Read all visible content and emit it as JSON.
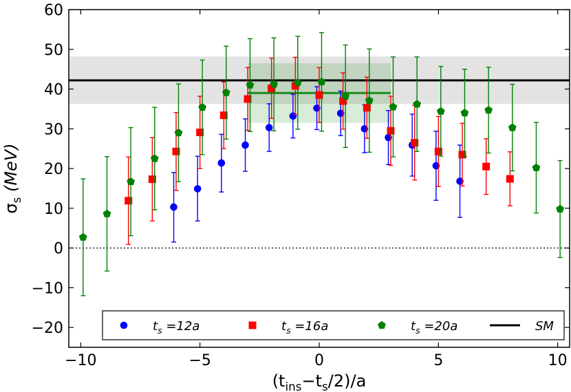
{
  "chart_data": {
    "type": "scatter",
    "title": "",
    "xlabel": "(t_ins−t_s/2)/a",
    "ylabel": "σ_s (MeV)",
    "xlim": [
      -10.5,
      10.5
    ],
    "ylim": [
      -25,
      60
    ],
    "x_ticks": [
      -10,
      -5,
      0,
      5,
      10
    ],
    "y_ticks": [
      -20,
      -10,
      0,
      10,
      20,
      30,
      40,
      50,
      60
    ],
    "x_tick_labels": [
      "−10",
      "−5",
      "0",
      "5",
      "10"
    ],
    "y_tick_labels": [
      "−20",
      "−10",
      "0",
      "10",
      "20",
      "30",
      "40",
      "50",
      "60"
    ],
    "zero_line": 0,
    "sm": {
      "value": 42.2,
      "band": [
        36.3,
        48.2
      ],
      "label": "SM",
      "color": "#000000"
    },
    "fit": {
      "x": [
        -3,
        3
      ],
      "value": 39.0,
      "band": [
        31.5,
        46.5
      ],
      "color": "#1a8c1a"
    },
    "series": [
      {
        "name": "t_s =12a",
        "legend_base": "t",
        "legend_sub": "s",
        "legend_rest": " =12a",
        "color": "#0000ff",
        "marker": "circle",
        "points": [
          {
            "x": -6,
            "y": 10.3,
            "lo": 1.5,
            "hi": 19.0
          },
          {
            "x": -5,
            "y": 14.9,
            "lo": 6.8,
            "hi": 23.1
          },
          {
            "x": -4,
            "y": 21.4,
            "lo": 14.1,
            "hi": 28.6
          },
          {
            "x": -3,
            "y": 25.9,
            "lo": 19.3,
            "hi": 32.5
          },
          {
            "x": -2,
            "y": 30.3,
            "lo": 24.3,
            "hi": 36.3
          },
          {
            "x": -1,
            "y": 33.2,
            "lo": 27.7,
            "hi": 38.7
          },
          {
            "x": 0,
            "y": 35.2,
            "lo": 29.8,
            "hi": 40.6
          },
          {
            "x": 1,
            "y": 33.9,
            "lo": 28.3,
            "hi": 39.5
          },
          {
            "x": 2,
            "y": 30.0,
            "lo": 24.0,
            "hi": 36.0
          },
          {
            "x": 3,
            "y": 27.8,
            "lo": 21.0,
            "hi": 34.6
          },
          {
            "x": 4,
            "y": 25.9,
            "lo": 18.1,
            "hi": 33.7
          },
          {
            "x": 5,
            "y": 20.7,
            "lo": 12.0,
            "hi": 29.4
          },
          {
            "x": 6,
            "y": 16.8,
            "lo": 7.7,
            "hi": 25.9
          }
        ]
      },
      {
        "name": "t_s =16a",
        "legend_base": "t",
        "legend_sub": "s",
        "legend_rest": " =16a",
        "color": "#ff0000",
        "marker": "square",
        "points": [
          {
            "x": -8,
            "y": 11.9,
            "lo": 0.9,
            "hi": 22.9
          },
          {
            "x": -7,
            "y": 17.3,
            "lo": 6.8,
            "hi": 27.8
          },
          {
            "x": -6,
            "y": 24.3,
            "lo": 14.5,
            "hi": 34.1
          },
          {
            "x": -5,
            "y": 29.1,
            "lo": 20.0,
            "hi": 38.2
          },
          {
            "x": -4,
            "y": 33.4,
            "lo": 25.0,
            "hi": 41.8
          },
          {
            "x": -3,
            "y": 37.5,
            "lo": 29.6,
            "hi": 45.4
          },
          {
            "x": -2,
            "y": 40.2,
            "lo": 32.6,
            "hi": 47.8
          },
          {
            "x": -1,
            "y": 40.8,
            "lo": 33.6,
            "hi": 48.0
          },
          {
            "x": 0,
            "y": 38.5,
            "lo": 31.6,
            "hi": 45.4
          },
          {
            "x": 1,
            "y": 37.0,
            "lo": 29.9,
            "hi": 44.1
          },
          {
            "x": 2,
            "y": 35.3,
            "lo": 27.6,
            "hi": 43.0
          },
          {
            "x": 3,
            "y": 29.5,
            "lo": 20.8,
            "hi": 38.2
          },
          {
            "x": 4,
            "y": 26.5,
            "lo": 17.1,
            "hi": 35.9
          },
          {
            "x": 5,
            "y": 24.3,
            "lo": 15.5,
            "hi": 33.1
          },
          {
            "x": 6,
            "y": 23.5,
            "lo": 15.6,
            "hi": 31.4
          },
          {
            "x": 7,
            "y": 20.5,
            "lo": 13.5,
            "hi": 27.5
          },
          {
            "x": 8,
            "y": 17.4,
            "lo": 10.6,
            "hi": 24.2
          }
        ]
      },
      {
        "name": "t_s =20a",
        "legend_base": "t",
        "legend_sub": "s",
        "legend_rest": " =20a",
        "color": "#008000",
        "marker": "pentagon",
        "points": [
          {
            "x": -10,
            "y": 2.7,
            "lo": -12.0,
            "hi": 17.4
          },
          {
            "x": -9,
            "y": 8.6,
            "lo": -5.8,
            "hi": 23.0
          },
          {
            "x": -8,
            "y": 16.7,
            "lo": 3.1,
            "hi": 30.3
          },
          {
            "x": -7,
            "y": 22.5,
            "lo": 9.6,
            "hi": 35.4
          },
          {
            "x": -6,
            "y": 29.0,
            "lo": 16.7,
            "hi": 41.3
          },
          {
            "x": -5,
            "y": 35.4,
            "lo": 23.5,
            "hi": 47.3
          },
          {
            "x": -4,
            "y": 39.1,
            "lo": 27.4,
            "hi": 50.8
          },
          {
            "x": -3,
            "y": 41.0,
            "lo": 29.3,
            "hi": 52.7
          },
          {
            "x": -2,
            "y": 41.2,
            "lo": 29.5,
            "hi": 52.9
          },
          {
            "x": -1,
            "y": 41.6,
            "lo": 29.9,
            "hi": 53.3
          },
          {
            "x": 0,
            "y": 41.8,
            "lo": 29.4,
            "hi": 54.2
          },
          {
            "x": 1,
            "y": 38.2,
            "lo": 25.3,
            "hi": 51.1
          },
          {
            "x": 2,
            "y": 37.1,
            "lo": 24.1,
            "hi": 50.1
          },
          {
            "x": 3,
            "y": 35.5,
            "lo": 22.9,
            "hi": 48.1
          },
          {
            "x": 4,
            "y": 36.2,
            "lo": 24.3,
            "hi": 48.1
          },
          {
            "x": 5,
            "y": 34.4,
            "lo": 23.1,
            "hi": 45.7
          },
          {
            "x": 6,
            "y": 34.0,
            "lo": 23.0,
            "hi": 45.0
          },
          {
            "x": 7,
            "y": 34.7,
            "lo": 23.9,
            "hi": 45.5
          },
          {
            "x": 8,
            "y": 30.3,
            "lo": 19.4,
            "hi": 41.2
          },
          {
            "x": 9,
            "y": 20.2,
            "lo": 8.8,
            "hi": 31.6
          },
          {
            "x": 10,
            "y": 9.8,
            "lo": -2.4,
            "hi": 22.0
          }
        ]
      }
    ],
    "legend_position": "bottom"
  }
}
